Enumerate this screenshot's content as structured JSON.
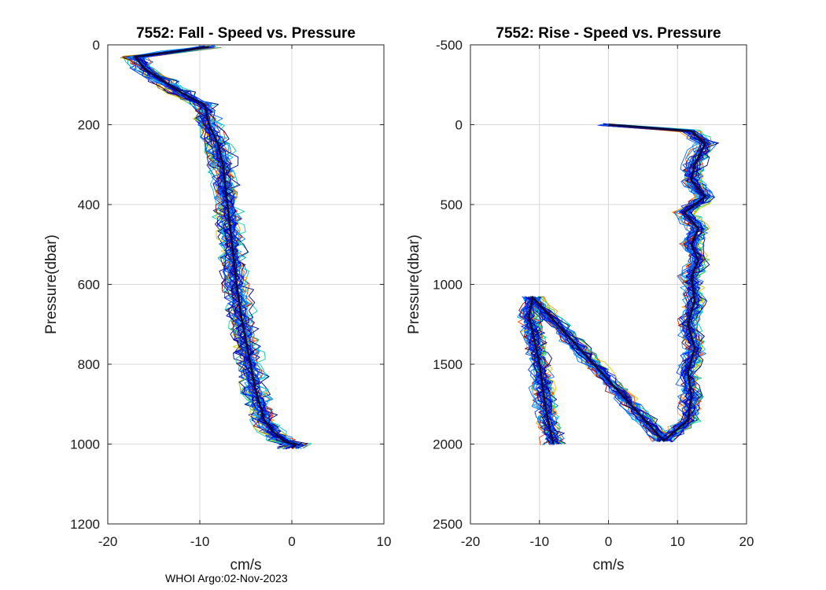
{
  "footer": "WHOI Argo:02-Nov-2023",
  "colors": {
    "profiles": [
      "#00008b",
      "#0000cd",
      "#0033ff",
      "#0066ff",
      "#0099ff",
      "#00bbee",
      "#00ccaa",
      "#33cc33",
      "#cccc00",
      "#ff9900",
      "#ff3300",
      "#8b0000"
    ],
    "mean": "#0a0a3c",
    "grid": "#d9d9d9",
    "axis": "#262626"
  },
  "chart_data": [
    {
      "type": "line",
      "title": "7552: Fall - Speed vs. Pressure",
      "xlabel": "cm/s",
      "ylabel": "Pressure(dbar)",
      "xlim": [
        -20,
        10
      ],
      "ylim": [
        0,
        1200
      ],
      "y_reversed": true,
      "grid": true,
      "xticks": [
        "-20",
        "-10",
        "0",
        "10"
      ],
      "yticks": [
        "0",
        "200",
        "400",
        "600",
        "800",
        "1000",
        "1200"
      ],
      "mean_profile": {
        "x": [
          -9,
          -17,
          -16,
          -14,
          -12,
          -9.5,
          -9,
          -8,
          -7.5,
          -7,
          -6.5,
          -6,
          -5.5,
          -5,
          -4.5,
          -4,
          -3.5,
          -3,
          -2,
          -1,
          0,
          0.5,
          0
        ],
        "y": [
          5,
          30,
          60,
          90,
          120,
          150,
          200,
          250,
          300,
          400,
          500,
          600,
          680,
          740,
          800,
          860,
          900,
          940,
          970,
          990,
          1000,
          1000,
          1010
        ]
      },
      "profile_count": 30
    },
    {
      "type": "line",
      "title": "7552: Rise - Speed vs. Pressure",
      "xlabel": "cm/s",
      "ylabel": "Pressure(dbar)",
      "xlim": [
        -20,
        20
      ],
      "ylim": [
        -500,
        2500
      ],
      "y_reversed": true,
      "grid": true,
      "xticks": [
        "-20",
        "-10",
        "0",
        "10",
        "20"
      ],
      "yticks": [
        "-500",
        "0",
        "500",
        "1000",
        "1500",
        "2000",
        "2500"
      ],
      "mean_profile": {
        "x": [
          -8,
          -8.5,
          -9,
          -9.5,
          -10,
          -10.5,
          -11,
          -11.5,
          -11,
          8,
          11.5,
          12,
          11.5,
          12.5,
          11.5,
          12.5,
          12,
          13,
          12,
          13,
          11,
          14,
          12,
          12.5,
          14,
          12,
          0
        ],
        "y": [
          2000,
          1900,
          1800,
          1650,
          1500,
          1400,
          1300,
          1200,
          1080,
          1980,
          1850,
          1700,
          1550,
          1400,
          1250,
          1100,
          950,
          850,
          750,
          650,
          550,
          450,
          350,
          250,
          120,
          40,
          0
        ]
      },
      "profile_count": 30
    }
  ]
}
